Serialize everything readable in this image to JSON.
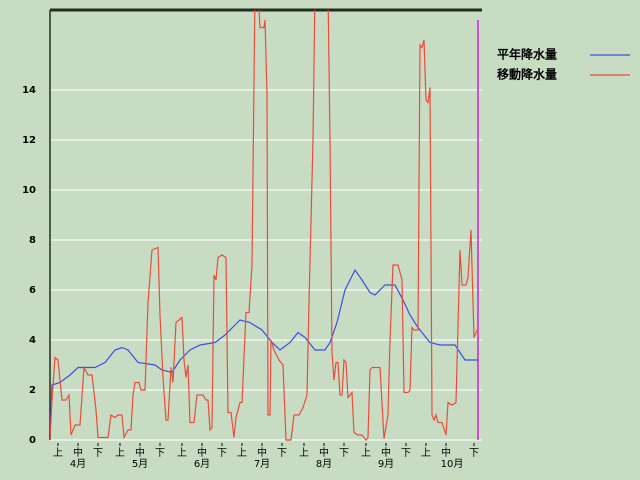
{
  "chart_data": {
    "type": "line",
    "xlim": [
      0,
      214
    ],
    "ylim": [
      0,
      17.2
    ],
    "yticks": [
      0,
      2,
      4,
      6,
      8,
      10,
      12,
      14
    ],
    "xticks": [
      {
        "value": 4,
        "label": "上"
      },
      {
        "value": 14,
        "label": "中"
      },
      {
        "value": 24,
        "label": "下"
      },
      {
        "value": 35,
        "label": "上"
      },
      {
        "value": 45,
        "label": "中"
      },
      {
        "value": 55,
        "label": "下"
      },
      {
        "value": 66,
        "label": "上"
      },
      {
        "value": 76,
        "label": "中"
      },
      {
        "value": 86,
        "label": "下"
      },
      {
        "value": 96,
        "label": "上"
      },
      {
        "value": 106,
        "label": "中"
      },
      {
        "value": 116,
        "label": "下"
      },
      {
        "value": 127,
        "label": "上"
      },
      {
        "value": 137,
        "label": "中"
      },
      {
        "value": 147,
        "label": "下"
      },
      {
        "value": 158,
        "label": "上"
      },
      {
        "value": 168,
        "label": "中"
      },
      {
        "value": 178,
        "label": "下"
      },
      {
        "value": 188,
        "label": "上"
      },
      {
        "value": 198,
        "label": "中"
      },
      {
        "value": 212,
        "label": "下"
      }
    ],
    "month_labels": [
      {
        "value": 14,
        "label": "4月"
      },
      {
        "value": 45,
        "label": "5月"
      },
      {
        "value": 76,
        "label": "6月"
      },
      {
        "value": 106,
        "label": "7月"
      },
      {
        "value": 137,
        "label": "8月"
      },
      {
        "value": 168,
        "label": "9月"
      },
      {
        "value": 201,
        "label": "10月"
      }
    ],
    "grid": true,
    "legend": "upper right",
    "series": [
      {
        "name": "平年降水量",
        "color": "#3c50e0",
        "x": [
          0,
          1,
          5,
          10,
          14,
          22.5,
          27.5,
          32.5,
          36,
          39,
          44,
          52.5,
          56,
          61,
          65,
          70,
          75,
          82.5,
          87.5,
          95,
          100,
          106,
          111,
          115,
          120,
          124,
          127.5,
          132.5,
          137.5,
          140,
          143.5,
          147.5,
          152.5,
          156,
          160,
          162.5,
          167.5,
          172.5,
          176.5,
          180,
          184,
          190,
          195,
          202.5,
          207.5,
          214
        ],
        "values": [
          0,
          2.2,
          2.3,
          2.6,
          2.9,
          2.9,
          3.1,
          3.6,
          3.7,
          3.6,
          3.1,
          3.0,
          2.8,
          2.7,
          3.2,
          3.6,
          3.8,
          3.9,
          4.2,
          4.8,
          4.7,
          4.4,
          3.9,
          3.6,
          3.9,
          4.3,
          4.1,
          3.6,
          3.6,
          3.9,
          4.7,
          6.0,
          6.8,
          6.4,
          5.9,
          5.8,
          6.2,
          6.2,
          5.6,
          5.0,
          4.5,
          3.9,
          3.8,
          3.8,
          3.2,
          3.2
        ]
      },
      {
        "name": "移動降水量",
        "color": "#e84c3c",
        "x": [
          0,
          1,
          2.5,
          4,
          6,
          8,
          9.5,
          10.5,
          12.5,
          15,
          17,
          19,
          21,
          23,
          24,
          29,
          30.5,
          32.5,
          34,
          36,
          37,
          39,
          40.5,
          41.5,
          42.5,
          44.5,
          45.5,
          47.5,
          49,
          51,
          54,
          55,
          56.5,
          58,
          59,
          60.5,
          61.5,
          63,
          66,
          67,
          68,
          69,
          70,
          72,
          73.5,
          76.5,
          78,
          79,
          80,
          81,
          82,
          83,
          84,
          86,
          88,
          89,
          90.5,
          92,
          93,
          95,
          96,
          97,
          98,
          99.5,
          101,
          102.5,
          104,
          105,
          107,
          107.5,
          108.5,
          109,
          110,
          110.5,
          112,
          114.5,
          116.5,
          118,
          120.5,
          122,
          124.5,
          126.5,
          128.5,
          129.5,
          131.5,
          132.5,
          139,
          140,
          141,
          142,
          143,
          144,
          145,
          146,
          147,
          148,
          149,
          151,
          152,
          154,
          156,
          158,
          159,
          160,
          161,
          165,
          167,
          169,
          170,
          171.5,
          174,
          176,
          177,
          179,
          180,
          181,
          182,
          184,
          185,
          186,
          187,
          188,
          189,
          190,
          191,
          192,
          193,
          194,
          196,
          198,
          199,
          201,
          203,
          205,
          206,
          208,
          209,
          210.5,
          212,
          213.5
        ],
        "values": [
          0,
          1.6,
          3.3,
          3.2,
          1.6,
          1.6,
          1.8,
          0.2,
          0.6,
          0.6,
          2.9,
          2.6,
          2.6,
          1.2,
          0.1,
          0.1,
          1.0,
          0.9,
          1.0,
          1.0,
          0.1,
          0.4,
          0.4,
          1.8,
          2.3,
          2.3,
          2.0,
          2.0,
          5.5,
          7.6,
          7.7,
          5.0,
          2.5,
          0.8,
          0.8,
          2.9,
          2.3,
          4.7,
          4.9,
          3.2,
          2.5,
          3.0,
          0.7,
          0.7,
          1.8,
          1.8,
          1.6,
          1.6,
          0.4,
          0.5,
          6.6,
          6.4,
          7.3,
          7.4,
          7.3,
          1.1,
          1.1,
          0.1,
          0.9,
          1.5,
          1.5,
          3.3,
          5.1,
          5.1,
          7.0,
          18,
          18,
          16.5,
          16.5,
          16.8,
          13.8,
          1.0,
          1.0,
          4.0,
          3.6,
          3.2,
          3.0,
          0,
          0,
          1.0,
          1.0,
          1.3,
          1.8,
          5.5,
          12,
          18,
          18,
          12,
          3.5,
          2.4,
          3.1,
          3.1,
          1.8,
          1.8,
          3.2,
          3.1,
          1.7,
          1.9,
          0.3,
          0.2,
          0.2,
          0,
          0.1,
          2.8,
          2.9,
          2.9,
          0.05,
          1.0,
          4.0,
          7.0,
          7.0,
          6.4,
          1.9,
          1.9,
          2.0,
          4.5,
          4.4,
          4.4,
          15.8,
          15.7,
          16.0,
          13.6,
          13.5,
          14.1,
          1.0,
          0.8,
          1.0,
          0.7,
          0.7,
          0.2,
          1.5,
          1.4,
          1.5,
          7.6,
          6.2,
          6.2,
          6.5,
          8.4,
          4.1,
          4.4
        ]
      }
    ]
  }
}
